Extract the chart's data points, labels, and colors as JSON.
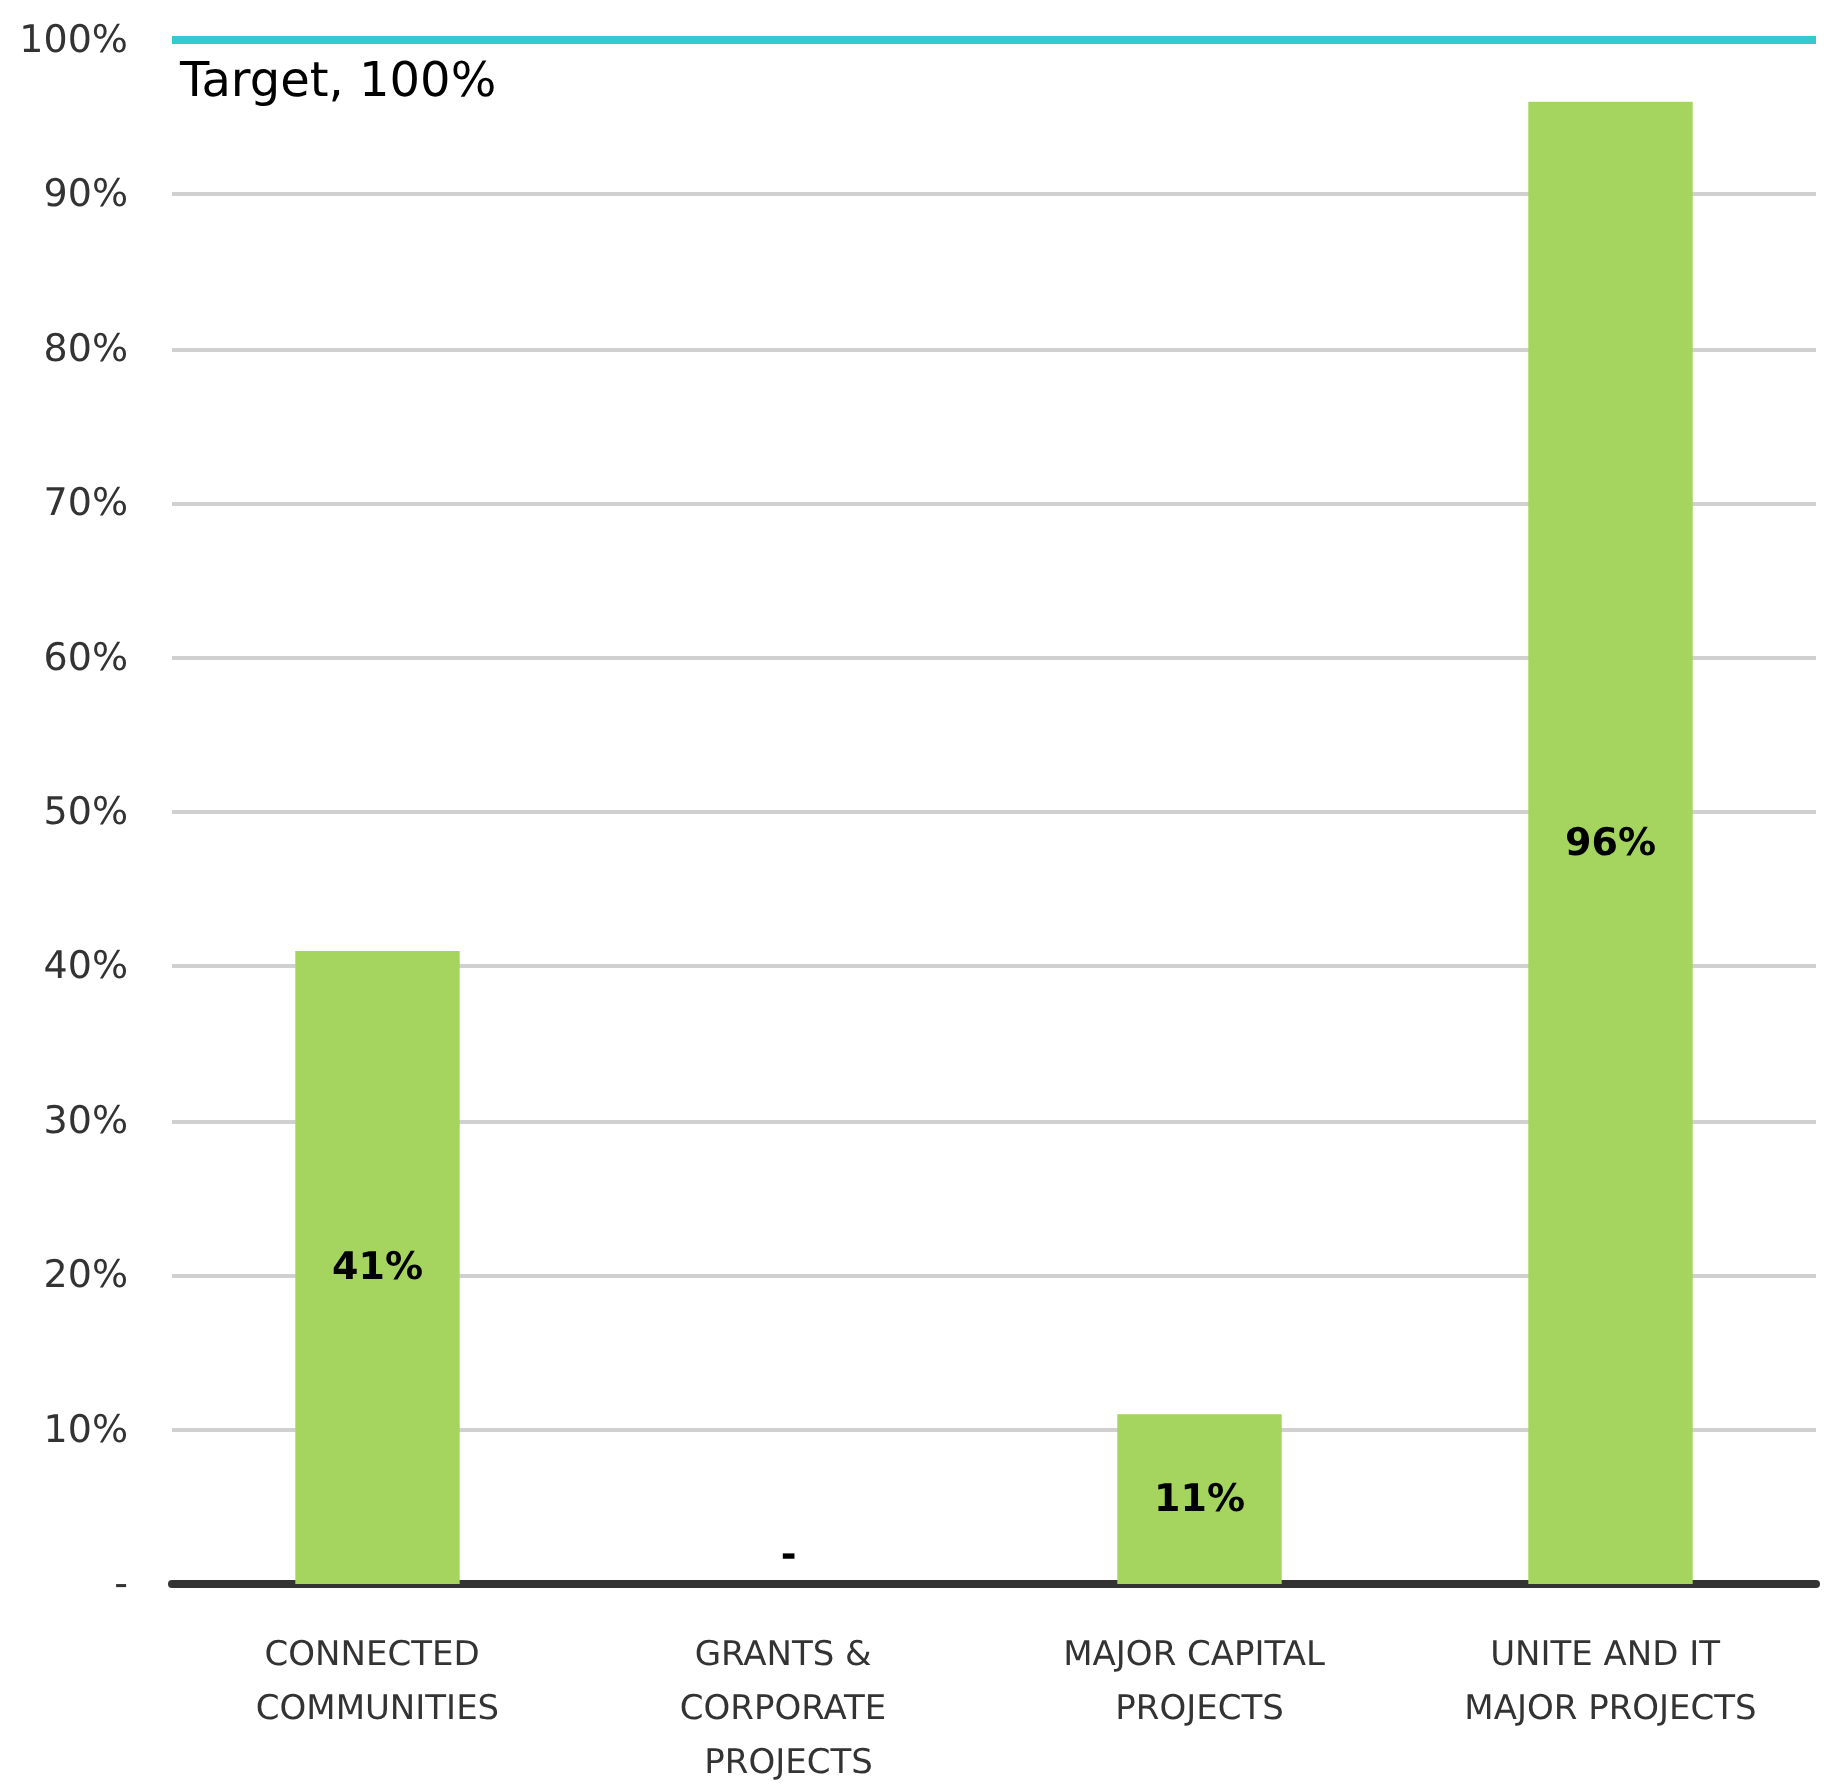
{
  "chart_data": {
    "type": "bar",
    "categories": [
      "CONNECTED COMMUNITIES",
      "GRANTS & CORPORATE PROJECTS",
      "MAJOR CAPITAL PROJECTS",
      "UNITE AND IT MAJOR PROJECTS"
    ],
    "values": [
      41,
      0,
      11,
      96
    ],
    "color": "#a5d55f",
    "value_labels": [
      "41%",
      "-",
      "11%",
      "96%"
    ],
    "ylim": [
      0,
      100
    ],
    "yticks": [
      {
        "value": 0,
        "label": "-"
      },
      {
        "value": 10,
        "label": "10%"
      },
      {
        "value": 20,
        "label": "20%"
      },
      {
        "value": 30,
        "label": "30%"
      },
      {
        "value": 40,
        "label": "40%"
      },
      {
        "value": 50,
        "label": "50%"
      },
      {
        "value": 60,
        "label": "60%"
      },
      {
        "value": 70,
        "label": "70%"
      },
      {
        "value": 80,
        "label": "80%"
      },
      {
        "value": 90,
        "label": "90%"
      },
      {
        "value": 100,
        "label": "100%"
      }
    ],
    "ref_lines": [
      {
        "axis": "y",
        "value": 100,
        "label": "Target, 100%",
        "color": "#33c9cf"
      }
    ],
    "grid": "y"
  }
}
